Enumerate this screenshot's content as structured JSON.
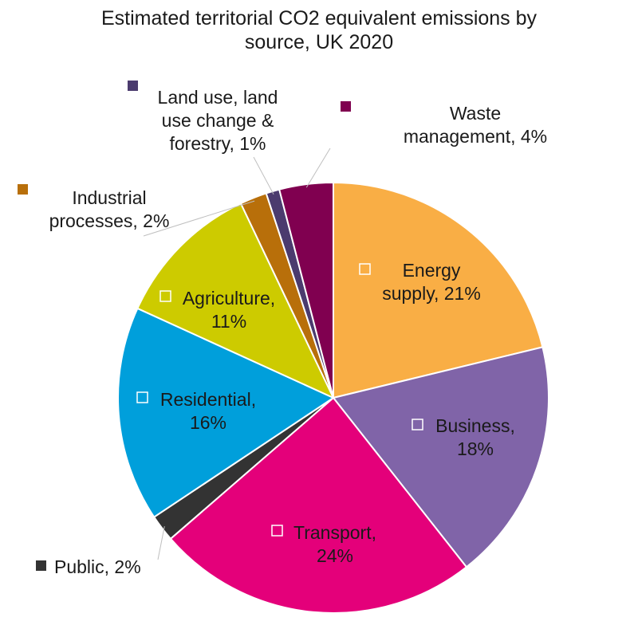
{
  "chart_data": {
    "type": "pie",
    "title": "Estimated territorial CO2 equivalent emissions by source, UK 2020",
    "title_lines": [
      "Estimated territorial CO2 equivalent emissions by",
      "source, UK 2020"
    ],
    "slices": [
      {
        "label": "Energy supply",
        "value": 21,
        "display_lines": [
          "Energy",
          "supply, 21%"
        ],
        "color": "#F9AE45"
      },
      {
        "label": "Business",
        "value": 18,
        "display_lines": [
          "Business,",
          "18%"
        ],
        "color": "#8064A8"
      },
      {
        "label": "Transport",
        "value": 24,
        "display_lines": [
          "Transport,",
          "24%"
        ],
        "color": "#E4007A"
      },
      {
        "label": "Public",
        "value": 2,
        "display_lines": [
          "Public, 2%"
        ],
        "color": "#333333"
      },
      {
        "label": "Residential",
        "value": 16,
        "display_lines": [
          "Residential,",
          "16%"
        ],
        "color": "#009FDB"
      },
      {
        "label": "Agriculture",
        "value": 11,
        "display_lines": [
          "Agriculture,",
          "11%"
        ],
        "color": "#CDCB00"
      },
      {
        "label": "Industrial processes",
        "value": 2,
        "display_lines": [
          "Industrial",
          "processes, 2%"
        ],
        "color": "#B86F0A"
      },
      {
        "label": "Land use, land use change & forestry",
        "value": 1,
        "display_lines": [
          "Land use, land",
          "use change &",
          "forestry, 1%"
        ],
        "color": "#4B3B6E"
      },
      {
        "label": "Waste management",
        "value": 4,
        "display_lines": [
          "Waste",
          "management, 4%"
        ],
        "color": "#800050"
      }
    ],
    "legend": "none (labels on slices)"
  }
}
